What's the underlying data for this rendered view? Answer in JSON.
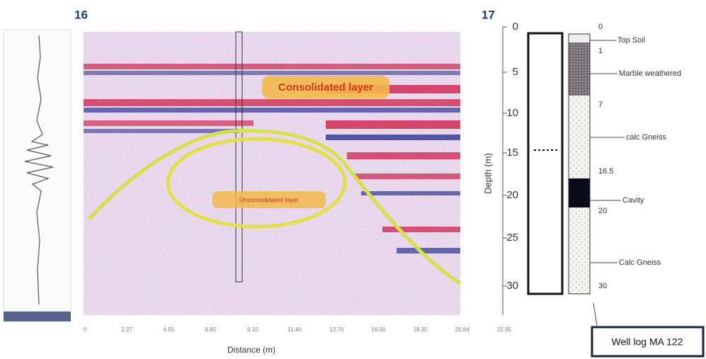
{
  "figure": {
    "left_label": "16",
    "right_label": "17",
    "radargram": {
      "annotations": [
        "Consolidated layer",
        "Unconsolidated layer"
      ],
      "x_axis": {
        "label": "Distance (m)",
        "ticks": [
          "0",
          "2.27",
          "4.55",
          "6.82",
          "9.10",
          "11.40",
          "13.70",
          "16.00",
          "18.30",
          "20.64",
          "22.95"
        ]
      },
      "depth_axis": {
        "label": "Depth (m)",
        "ticks": [
          "0",
          "5",
          "10",
          "15",
          "20",
          "25",
          "30"
        ]
      }
    },
    "well_log": {
      "title": "Well log MA 122",
      "depths": [
        "0",
        "1",
        "7",
        "16.5",
        "20",
        "30"
      ],
      "layers": [
        "Top Soil",
        "Marble weathered",
        "calc Gneiss",
        "Cavity",
        "Calc Gneiss"
      ]
    }
  }
}
